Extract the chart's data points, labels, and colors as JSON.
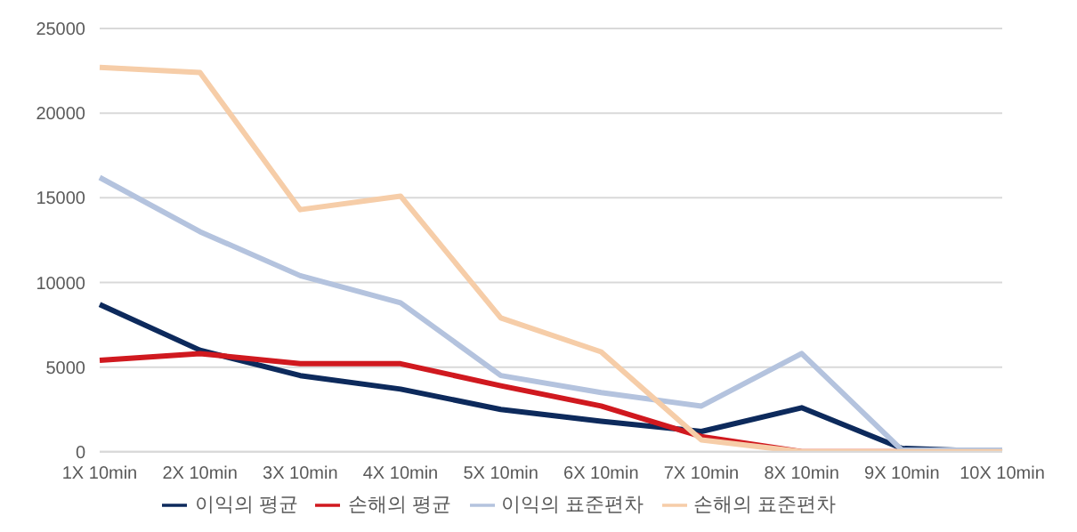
{
  "chart_data": {
    "type": "line",
    "categories": [
      "1X 10min",
      "2X 10min",
      "3X 10min",
      "4X 10min",
      "5X 10min",
      "6X 10min",
      "7X 10min",
      "8X 10min",
      "9X 10min",
      "10X 10min"
    ],
    "series": [
      {
        "name": "이익의 평균",
        "color": "#0d2a5c",
        "values": [
          8700,
          6000,
          4500,
          3700,
          2500,
          1800,
          1200,
          2600,
          200,
          0
        ]
      },
      {
        "name": "손해의 평균",
        "color": "#d0191f",
        "values": [
          5400,
          5800,
          5200,
          5200,
          3900,
          2700,
          900,
          0,
          0,
          0
        ]
      },
      {
        "name": "이익의 표준편차",
        "color": "#b4c3de",
        "values": [
          16200,
          13000,
          10400,
          8800,
          4500,
          3500,
          2700,
          5800,
          100,
          100
        ]
      },
      {
        "name": "손해의 표준편차",
        "color": "#f6cda8",
        "values": [
          22700,
          22400,
          14300,
          15100,
          7900,
          5900,
          700,
          0,
          0,
          0
        ]
      }
    ],
    "ylim": [
      0,
      25000
    ],
    "yticks": [
      0,
      5000,
      10000,
      15000,
      20000,
      25000
    ],
    "grid": "y",
    "legend": "bottom",
    "marker": "none",
    "line_style": "solid"
  }
}
